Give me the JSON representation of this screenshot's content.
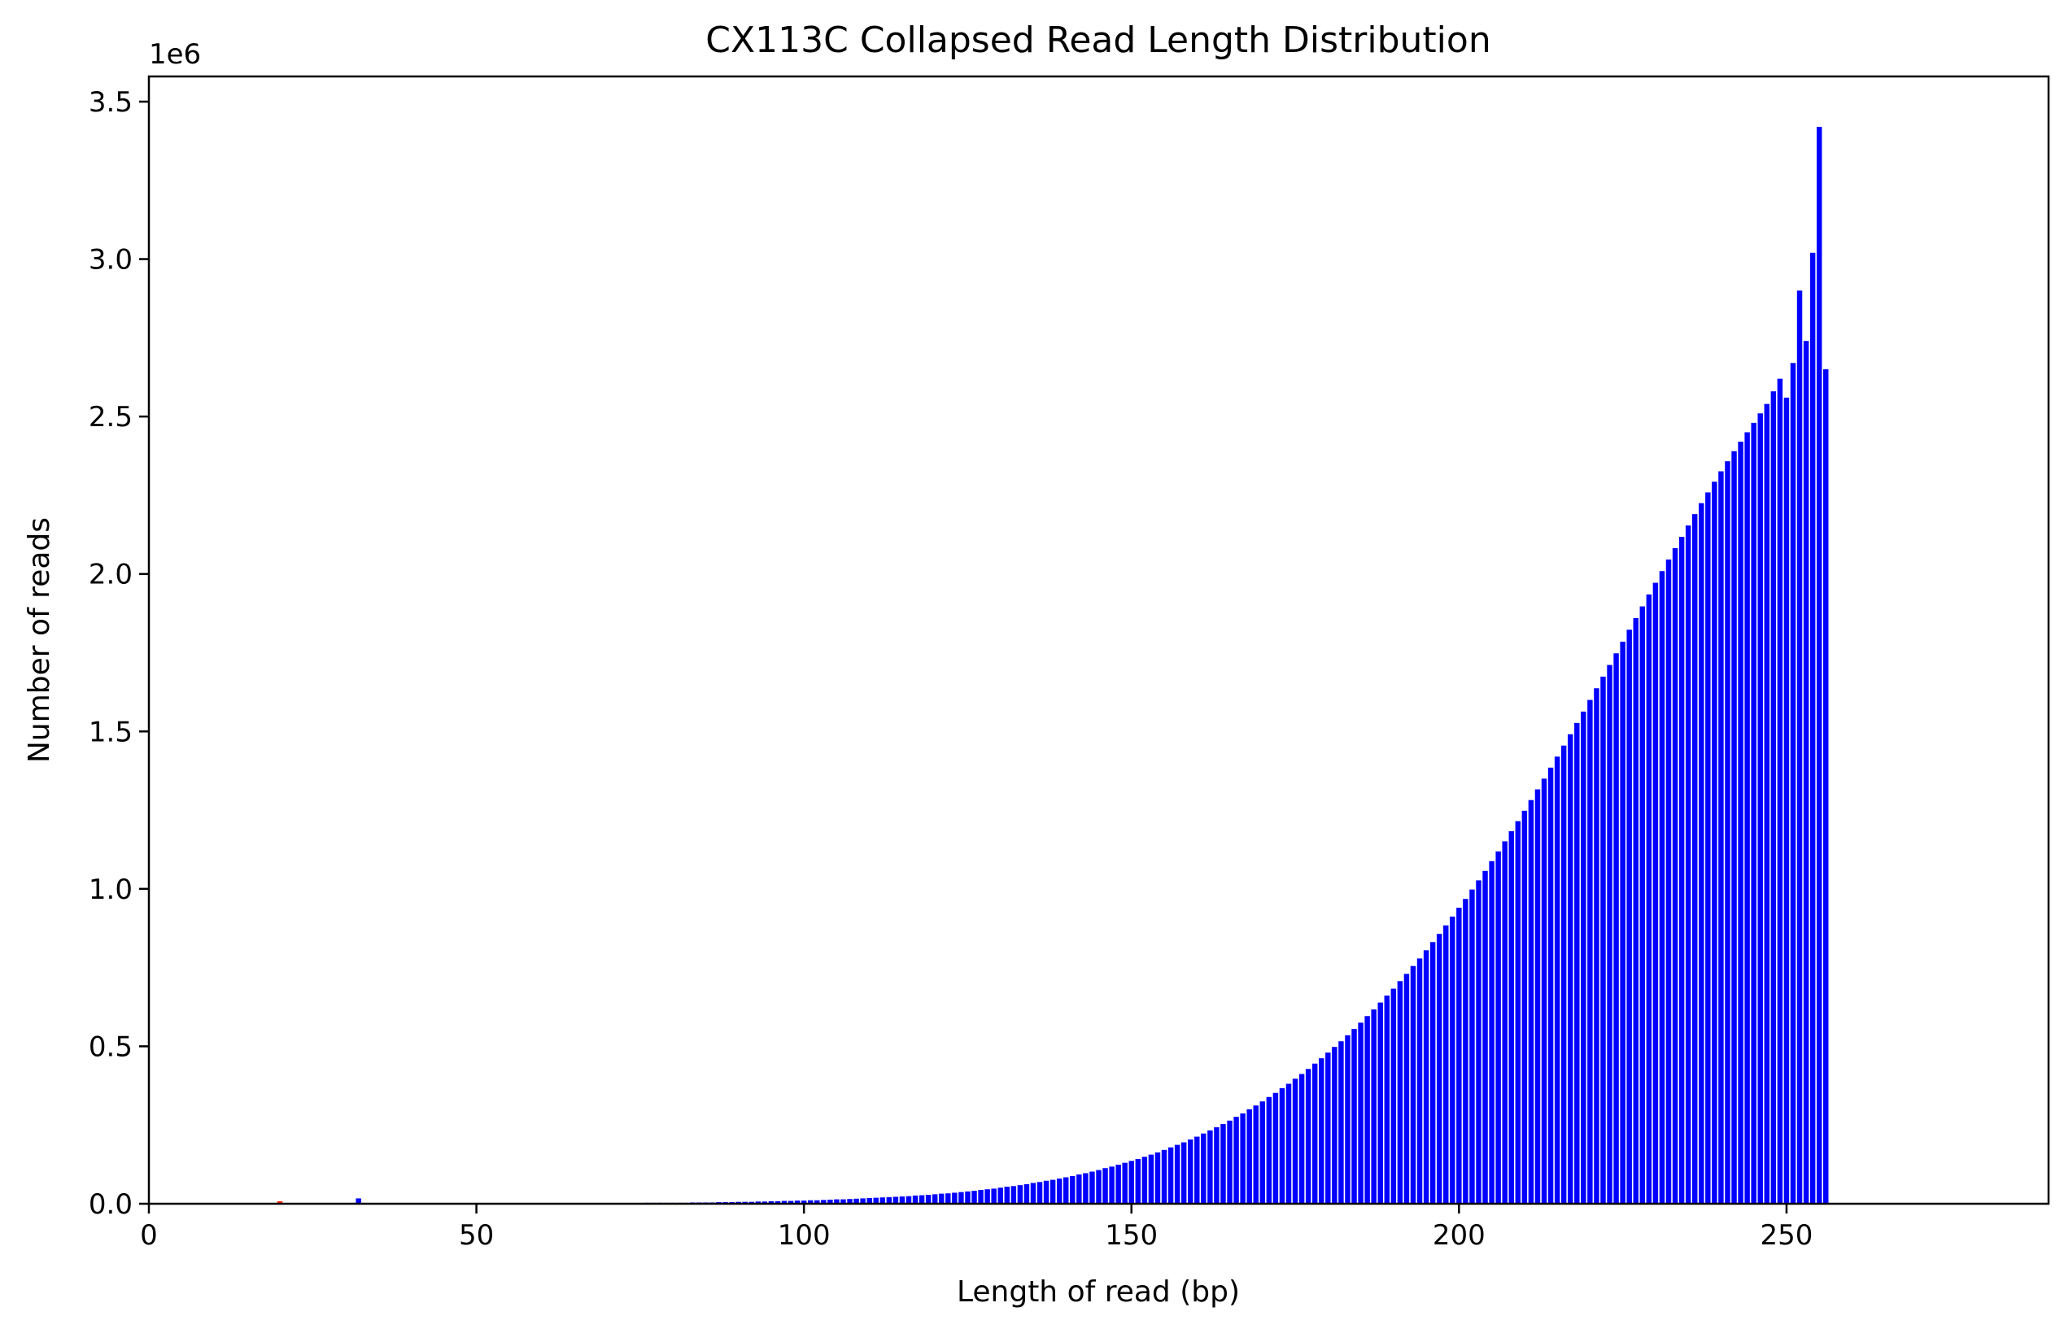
{
  "chart_data": {
    "type": "bar",
    "title": "CX113C Collapsed Read Length Distribution",
    "xlabel": "Length of read (bp)",
    "ylabel": "Number of reads",
    "offset_label": "1e6",
    "xlim": [
      0,
      290
    ],
    "ylim": [
      0,
      3.58
    ],
    "y_unit_multiplier": 1000000,
    "x_ticks": [
      0,
      50,
      100,
      150,
      200,
      250
    ],
    "x_tick_labels": [
      "0",
      "50",
      "100",
      "150",
      "200",
      "250"
    ],
    "y_ticks": [
      0,
      0.5,
      1.0,
      1.5,
      2.0,
      2.5,
      3.0,
      3.5
    ],
    "y_tick_labels": [
      "0.0",
      "0.5",
      "1.0",
      "1.5",
      "2.0",
      "2.5",
      "3.0",
      "3.5"
    ],
    "colors": {
      "main": "#0000ff",
      "highlight": "#ff2200"
    },
    "highlight_bars": [
      {
        "x": 20,
        "value": 0.008
      }
    ],
    "series": [
      {
        "name": "reads",
        "x_start": 32,
        "values": [
          0.017,
          0,
          0,
          0,
          0,
          0,
          0,
          0,
          0,
          0,
          0,
          0,
          0,
          0,
          0,
          0,
          0,
          0,
          0,
          0,
          0,
          0,
          0,
          0,
          0,
          0,
          0,
          0,
          0,
          0,
          0,
          0,
          0,
          0,
          0,
          0,
          0,
          0,
          0,
          0,
          0,
          0,
          0,
          0,
          0.003,
          0.003,
          0.003,
          0.003,
          0.003,
          0.003,
          0.003,
          0.004,
          0.004,
          0.004,
          0.004,
          0.005,
          0.005,
          0.005,
          0.006,
          0.006,
          0.006,
          0.007,
          0.007,
          0.008,
          0.008,
          0.009,
          0.009,
          0.01,
          0.01,
          0.011,
          0.011,
          0.012,
          0.013,
          0.014,
          0.014,
          0.015,
          0.016,
          0.017,
          0.018,
          0.019,
          0.02,
          0.021,
          0.022,
          0.023,
          0.024,
          0.026,
          0.027,
          0.028,
          0.03,
          0.032,
          0.033,
          0.035,
          0.037,
          0.039,
          0.041,
          0.044,
          0.046,
          0.048,
          0.051,
          0.054,
          0.056,
          0.059,
          0.062,
          0.066,
          0.069,
          0.073,
          0.076,
          0.08,
          0.084,
          0.088,
          0.093,
          0.097,
          0.102,
          0.107,
          0.113,
          0.118,
          0.124,
          0.13,
          0.136,
          0.142,
          0.149,
          0.156,
          0.163,
          0.171,
          0.179,
          0.187,
          0.195,
          0.204,
          0.213,
          0.223,
          0.233,
          0.243,
          0.253,
          0.264,
          0.276,
          0.287,
          0.3,
          0.312,
          0.325,
          0.339,
          0.352,
          0.367,
          0.381,
          0.397,
          0.412,
          0.428,
          0.445,
          0.462,
          0.48,
          0.498,
          0.516,
          0.535,
          0.555,
          0.575,
          0.596,
          0.617,
          0.639,
          0.661,
          0.683,
          0.707,
          0.73,
          0.755,
          0.779,
          0.805,
          0.831,
          0.857,
          0.884,
          0.912,
          0.94,
          0.968,
          0.998,
          1.027,
          1.057,
          1.088,
          1.119,
          1.151,
          1.183,
          1.215,
          1.248,
          1.282,
          1.316,
          1.35,
          1.385,
          1.42,
          1.455,
          1.491,
          1.527,
          1.563,
          1.6,
          1.637,
          1.674,
          1.711,
          1.748,
          1.785,
          1.823,
          1.86,
          1.897,
          1.935,
          1.972,
          2.009,
          2.046,
          2.082,
          2.118,
          2.154,
          2.19,
          2.225,
          2.259,
          2.293,
          2.326,
          2.358,
          2.39,
          2.42,
          2.45,
          2.48,
          2.51,
          2.54,
          2.58,
          2.62,
          2.56,
          2.67,
          2.9,
          2.74,
          3.02,
          3.42,
          2.65
        ]
      }
    ]
  }
}
